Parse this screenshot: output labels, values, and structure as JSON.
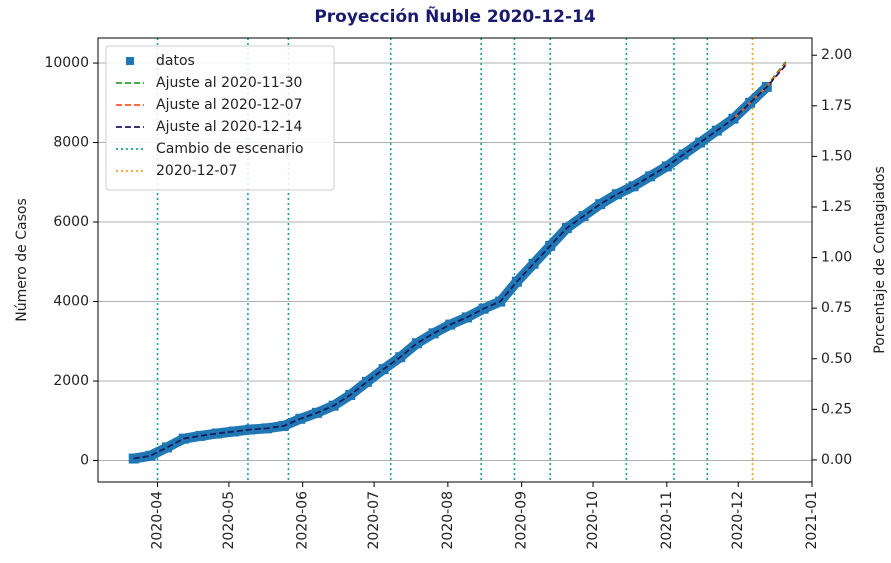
{
  "chart_data": {
    "type": "line",
    "title": "Proyección Ñuble 2020-12-14",
    "y_label": "Número de Casos",
    "y2_label": "Porcentaje de Contagiados",
    "xlim": [
      "2020-03-07",
      "2021-01-01"
    ],
    "xticks": [
      "2020-04",
      "2020-05",
      "2020-06",
      "2020-07",
      "2020-08",
      "2020-09",
      "2020-10",
      "2020-11",
      "2020-12",
      "2021-01"
    ],
    "ylim": [
      -540,
      10630
    ],
    "yticks": [
      0,
      2000,
      4000,
      6000,
      8000,
      10000
    ],
    "y2lim": [
      -0.109,
      2.085
    ],
    "y2ticks": [
      {
        "value": 0,
        "label": "0.00"
      },
      {
        "value": 0.25,
        "label": "0.25"
      },
      {
        "value": 0.5,
        "label": "0.50"
      },
      {
        "value": 0.75,
        "label": "0.75"
      },
      {
        "value": 1,
        "label": "1.00"
      },
      {
        "value": 1.25,
        "label": "1.25"
      },
      {
        "value": 1.5,
        "label": "1.50"
      },
      {
        "value": 1.75,
        "label": "1.75"
      },
      {
        "value": 2,
        "label": "2.00"
      }
    ],
    "grid": true,
    "legend": "upper left",
    "series": [
      {
        "name": "datos",
        "style": "markers",
        "color": "#1f77b4",
        "x": [
          "2020-03-22",
          "2020-03-29",
          "2020-04-05",
          "2020-04-12",
          "2020-04-19",
          "2020-04-26",
          "2020-05-03",
          "2020-05-10",
          "2020-05-17",
          "2020-05-24",
          "2020-05-31",
          "2020-06-07",
          "2020-06-14",
          "2020-06-21",
          "2020-06-28",
          "2020-07-05",
          "2020-07-12",
          "2020-07-19",
          "2020-07-26",
          "2020-08-02",
          "2020-08-09",
          "2020-08-16",
          "2020-08-23",
          "2020-08-30",
          "2020-09-06",
          "2020-09-13",
          "2020-09-20",
          "2020-09-27",
          "2020-10-04",
          "2020-10-11",
          "2020-10-18",
          "2020-10-25",
          "2020-11-01",
          "2020-11-08",
          "2020-11-15",
          "2020-11-22",
          "2020-11-29",
          "2020-12-06",
          "2020-12-13"
        ],
        "values": [
          50,
          120,
          330,
          550,
          620,
          680,
          730,
          780,
          810,
          870,
          1050,
          1200,
          1380,
          1650,
          1980,
          2300,
          2600,
          2950,
          3200,
          3420,
          3600,
          3820,
          4000,
          4500,
          4950,
          5400,
          5850,
          6150,
          6450,
          6700,
          6900,
          7150,
          7400,
          7700,
          8000,
          8300,
          8600,
          9000,
          9400
        ]
      },
      {
        "name": "Ajuste al 2020-11-30",
        "style": "dashed",
        "color": "#2ca02c",
        "x": [
          "2020-11-29",
          "2020-12-06",
          "2020-12-13",
          "2020-12-21"
        ],
        "values": [
          8600,
          9000,
          9430,
          10030
        ]
      },
      {
        "name": "Ajuste al 2020-12-07",
        "style": "dashed",
        "color": "#ff5722",
        "x": [
          "2020-11-29",
          "2020-12-06",
          "2020-12-13",
          "2020-12-21"
        ],
        "values": [
          8600,
          9000,
          9410,
          9990
        ]
      },
      {
        "name": "Ajuste al 2020-12-14",
        "style": "dashed",
        "color": "#1a1a5e",
        "x": [
          "2020-03-22",
          "2020-03-29",
          "2020-04-05",
          "2020-04-12",
          "2020-04-19",
          "2020-04-26",
          "2020-05-03",
          "2020-05-10",
          "2020-05-17",
          "2020-05-24",
          "2020-05-31",
          "2020-06-07",
          "2020-06-14",
          "2020-06-21",
          "2020-06-28",
          "2020-07-05",
          "2020-07-12",
          "2020-07-19",
          "2020-07-26",
          "2020-08-02",
          "2020-08-09",
          "2020-08-16",
          "2020-08-23",
          "2020-08-30",
          "2020-09-06",
          "2020-09-13",
          "2020-09-20",
          "2020-09-27",
          "2020-10-04",
          "2020-10-11",
          "2020-10-18",
          "2020-10-25",
          "2020-11-01",
          "2020-11-08",
          "2020-11-15",
          "2020-11-22",
          "2020-11-29",
          "2020-12-06",
          "2020-12-13",
          "2020-12-21"
        ],
        "values": [
          50,
          120,
          330,
          550,
          620,
          680,
          730,
          780,
          810,
          870,
          1050,
          1200,
          1380,
          1650,
          1980,
          2300,
          2600,
          2950,
          3200,
          3420,
          3600,
          3820,
          4000,
          4500,
          4950,
          5400,
          5850,
          6150,
          6450,
          6700,
          6900,
          7150,
          7400,
          7700,
          8000,
          8300,
          8600,
          9000,
          9400,
          9950
        ]
      }
    ],
    "vlines": [
      {
        "name": "Cambio de escenario",
        "color": "#17a0a0",
        "x": [
          "2020-04-01",
          "2020-05-09",
          "2020-05-26",
          "2020-07-08",
          "2020-08-15",
          "2020-08-29",
          "2020-09-13",
          "2020-10-15",
          "2020-11-04",
          "2020-11-18"
        ]
      },
      {
        "name": "2020-12-07",
        "color": "#ff9f1c",
        "x": [
          "2020-12-07"
        ]
      }
    ]
  }
}
